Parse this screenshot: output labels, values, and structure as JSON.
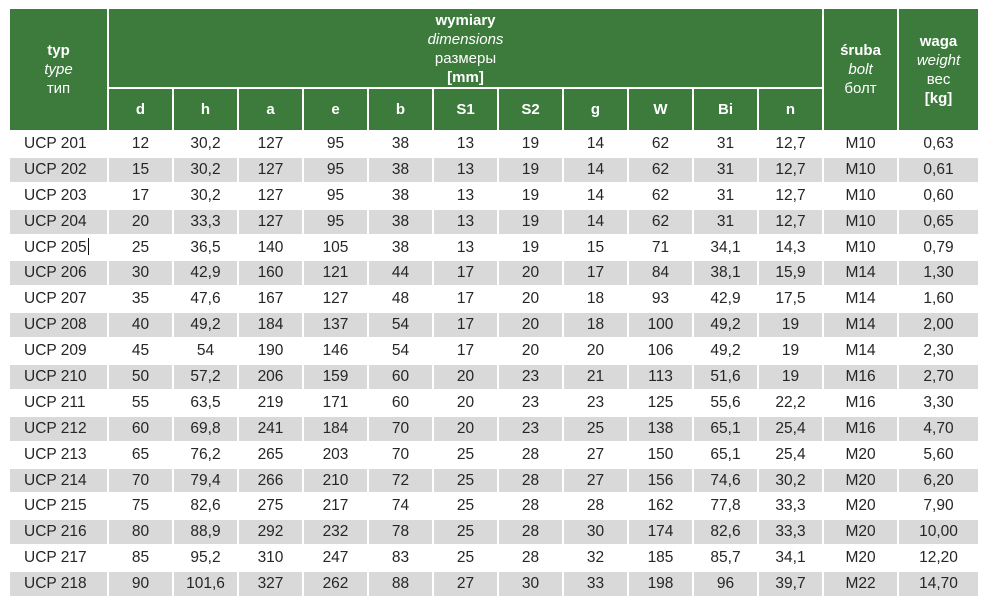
{
  "colors": {
    "header_green": "#3d7b3d",
    "header_text": "#ffffff",
    "row_alt": "#d9d9d9",
    "row_white": "#ffffff",
    "text_dark": "#262626",
    "page_bg": "#ffffff"
  },
  "header": {
    "type_col": [
      "typ",
      "type",
      "тип"
    ],
    "dimensions_group": [
      "wymiary",
      "dimensions",
      "размеры",
      "[mm]"
    ],
    "dim_columns": [
      "d",
      "h",
      "a",
      "e",
      "b",
      "S1",
      "S2",
      "g",
      "W",
      "Bi",
      "n"
    ],
    "bolt_col": [
      "śruba",
      "bolt",
      "болт"
    ],
    "weight_col": [
      "waga",
      "weight",
      "вес",
      "[kg]"
    ]
  },
  "rows": [
    {
      "type": "UCP 201",
      "dims": [
        "12",
        "30,2",
        "127",
        "95",
        "38",
        "13",
        "19",
        "14",
        "62",
        "31",
        "12,7"
      ],
      "bolt": "M10",
      "weight": "0,63"
    },
    {
      "type": "UCP 202",
      "dims": [
        "15",
        "30,2",
        "127",
        "95",
        "38",
        "13",
        "19",
        "14",
        "62",
        "31",
        "12,7"
      ],
      "bolt": "M10",
      "weight": "0,61"
    },
    {
      "type": "UCP 203",
      "dims": [
        "17",
        "30,2",
        "127",
        "95",
        "38",
        "13",
        "19",
        "14",
        "62",
        "31",
        "12,7"
      ],
      "bolt": "M10",
      "weight": "0,60"
    },
    {
      "type": "UCP 204",
      "dims": [
        "20",
        "33,3",
        "127",
        "95",
        "38",
        "13",
        "19",
        "14",
        "62",
        "31",
        "12,7"
      ],
      "bolt": "M10",
      "weight": "0,65"
    },
    {
      "type": "UCP 205",
      "cursor": true,
      "dims": [
        "25",
        "36,5",
        "140",
        "105",
        "38",
        "13",
        "19",
        "15",
        "71",
        "34,1",
        "14,3"
      ],
      "bolt": "M10",
      "weight": "0,79"
    },
    {
      "type": "UCP 206",
      "dims": [
        "30",
        "42,9",
        "160",
        "121",
        "44",
        "17",
        "20",
        "17",
        "84",
        "38,1",
        "15,9"
      ],
      "bolt": "M14",
      "weight": "1,30"
    },
    {
      "type": "UCP 207",
      "dims": [
        "35",
        "47,6",
        "167",
        "127",
        "48",
        "17",
        "20",
        "18",
        "93",
        "42,9",
        "17,5"
      ],
      "bolt": "M14",
      "weight": "1,60"
    },
    {
      "type": "UCP 208",
      "dims": [
        "40",
        "49,2",
        "184",
        "137",
        "54",
        "17",
        "20",
        "18",
        "100",
        "49,2",
        "19"
      ],
      "bolt": "M14",
      "weight": "2,00"
    },
    {
      "type": "UCP 209",
      "dims": [
        "45",
        "54",
        "190",
        "146",
        "54",
        "17",
        "20",
        "20",
        "106",
        "49,2",
        "19"
      ],
      "bolt": "M14",
      "weight": "2,30"
    },
    {
      "type": "UCP 210",
      "dims": [
        "50",
        "57,2",
        "206",
        "159",
        "60",
        "20",
        "23",
        "21",
        "113",
        "51,6",
        "19"
      ],
      "bolt": "M16",
      "weight": "2,70"
    },
    {
      "type": "UCP 211",
      "dims": [
        "55",
        "63,5",
        "219",
        "171",
        "60",
        "20",
        "23",
        "23",
        "125",
        "55,6",
        "22,2"
      ],
      "bolt": "M16",
      "weight": "3,30"
    },
    {
      "type": "UCP 212",
      "dims": [
        "60",
        "69,8",
        "241",
        "184",
        "70",
        "20",
        "23",
        "25",
        "138",
        "65,1",
        "25,4"
      ],
      "bolt": "M16",
      "weight": "4,70"
    },
    {
      "type": "UCP 213",
      "dims": [
        "65",
        "76,2",
        "265",
        "203",
        "70",
        "25",
        "28",
        "27",
        "150",
        "65,1",
        "25,4"
      ],
      "bolt": "M20",
      "weight": "5,60"
    },
    {
      "type": "UCP 214",
      "dims": [
        "70",
        "79,4",
        "266",
        "210",
        "72",
        "25",
        "28",
        "27",
        "156",
        "74,6",
        "30,2"
      ],
      "bolt": "M20",
      "weight": "6,20"
    },
    {
      "type": "UCP 215",
      "dims": [
        "75",
        "82,6",
        "275",
        "217",
        "74",
        "25",
        "28",
        "28",
        "162",
        "77,8",
        "33,3"
      ],
      "bolt": "M20",
      "weight": "7,90"
    },
    {
      "type": "UCP 216",
      "dims": [
        "80",
        "88,9",
        "292",
        "232",
        "78",
        "25",
        "28",
        "30",
        "174",
        "82,6",
        "33,3"
      ],
      "bolt": "M20",
      "weight": "10,00"
    },
    {
      "type": "UCP 217",
      "dims": [
        "85",
        "95,2",
        "310",
        "247",
        "83",
        "25",
        "28",
        "32",
        "185",
        "85,7",
        "34,1"
      ],
      "bolt": "M20",
      "weight": "12,20"
    },
    {
      "type": "UCP 218",
      "dims": [
        "90",
        "101,6",
        "327",
        "262",
        "88",
        "27",
        "30",
        "33",
        "198",
        "96",
        "39,7"
      ],
      "bolt": "M22",
      "weight": "14,70"
    }
  ]
}
